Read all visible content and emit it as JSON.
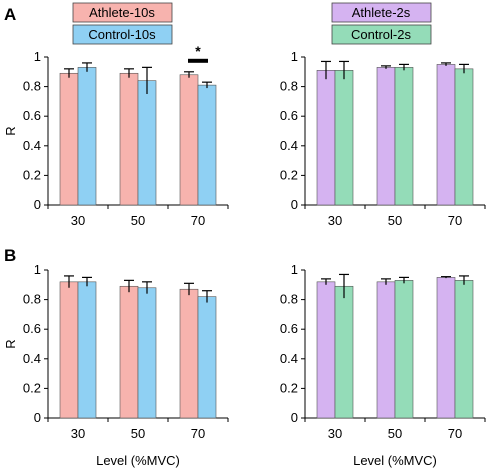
{
  "panel_labels": [
    "A",
    "B"
  ],
  "legends": [
    {
      "items": [
        {
          "label": "Athlete-10s",
          "color": "#f7b3ae"
        },
        {
          "label": "Control-10s",
          "color": "#8fd0f3"
        }
      ]
    },
    {
      "items": [
        {
          "label": "Athlete-2s",
          "color": "#d5b3f1"
        },
        {
          "label": "Control-2s",
          "color": "#94dcb8"
        }
      ]
    }
  ],
  "chart_data": [
    {
      "type": "bar",
      "panel": "A",
      "side": "left",
      "categories": [
        "30",
        "50",
        "70"
      ],
      "ylabel": "R",
      "xlabel": "",
      "ylim": [
        0,
        1
      ],
      "yticks": [
        0,
        0.2,
        0.4,
        0.6,
        0.8,
        1
      ],
      "ytick_labels": [
        "0",
        "0.2",
        "0.4",
        "0.6",
        "0.8",
        "1"
      ],
      "series": [
        {
          "name": "Athlete-10s",
          "color": "#f7b3ae",
          "values": [
            0.89,
            0.89,
            0.88
          ],
          "errors": [
            0.03,
            0.03,
            0.02
          ]
        },
        {
          "name": "Control-10s",
          "color": "#8fd0f3",
          "values": [
            0.93,
            0.84,
            0.81
          ],
          "errors": [
            0.03,
            0.09,
            0.02
          ]
        }
      ],
      "annotations": [
        {
          "text": "*",
          "category": "70"
        }
      ]
    },
    {
      "type": "bar",
      "panel": "A",
      "side": "right",
      "categories": [
        "30",
        "50",
        "70"
      ],
      "ylabel": "",
      "xlabel": "",
      "ylim": [
        0,
        1
      ],
      "yticks": [
        0,
        0.2,
        0.4,
        0.6,
        0.8,
        1
      ],
      "ytick_labels": [
        "0",
        "0.2",
        "0.4",
        "0.6",
        "0.8",
        "1"
      ],
      "series": [
        {
          "name": "Athlete-2s",
          "color": "#d5b3f1",
          "values": [
            0.91,
            0.93,
            0.95
          ],
          "errors": [
            0.06,
            0.01,
            0.01
          ]
        },
        {
          "name": "Control-2s",
          "color": "#94dcb8",
          "values": [
            0.91,
            0.93,
            0.92
          ],
          "errors": [
            0.06,
            0.02,
            0.03
          ]
        }
      ],
      "annotations": []
    },
    {
      "type": "bar",
      "panel": "B",
      "side": "left",
      "categories": [
        "30",
        "50",
        "70"
      ],
      "ylabel": "R",
      "xlabel": "Level (%MVC)",
      "ylim": [
        0,
        1
      ],
      "yticks": [
        0,
        0.2,
        0.4,
        0.6,
        0.8,
        1
      ],
      "ytick_labels": [
        "0",
        "0.2",
        "0.4",
        "0.6",
        "0.8",
        "1"
      ],
      "series": [
        {
          "name": "Athlete-10s",
          "color": "#f7b3ae",
          "values": [
            0.92,
            0.89,
            0.87
          ],
          "errors": [
            0.04,
            0.04,
            0.04
          ]
        },
        {
          "name": "Control-10s",
          "color": "#8fd0f3",
          "values": [
            0.92,
            0.88,
            0.82
          ],
          "errors": [
            0.03,
            0.04,
            0.04
          ]
        }
      ],
      "annotations": []
    },
    {
      "type": "bar",
      "panel": "B",
      "side": "right",
      "categories": [
        "30",
        "50",
        "70"
      ],
      "ylabel": "",
      "xlabel": "Level (%MVC)",
      "ylim": [
        0,
        1
      ],
      "yticks": [
        0,
        0.2,
        0.4,
        0.6,
        0.8,
        1
      ],
      "ytick_labels": [
        "0",
        "0.2",
        "0.4",
        "0.6",
        "0.8",
        "1"
      ],
      "series": [
        {
          "name": "Athlete-2s",
          "color": "#d5b3f1",
          "values": [
            0.92,
            0.92,
            0.95
          ],
          "errors": [
            0.02,
            0.02,
            0.005
          ]
        },
        {
          "name": "Control-2s",
          "color": "#94dcb8",
          "values": [
            0.89,
            0.93,
            0.93
          ],
          "errors": [
            0.08,
            0.02,
            0.03
          ]
        }
      ],
      "annotations": []
    }
  ]
}
